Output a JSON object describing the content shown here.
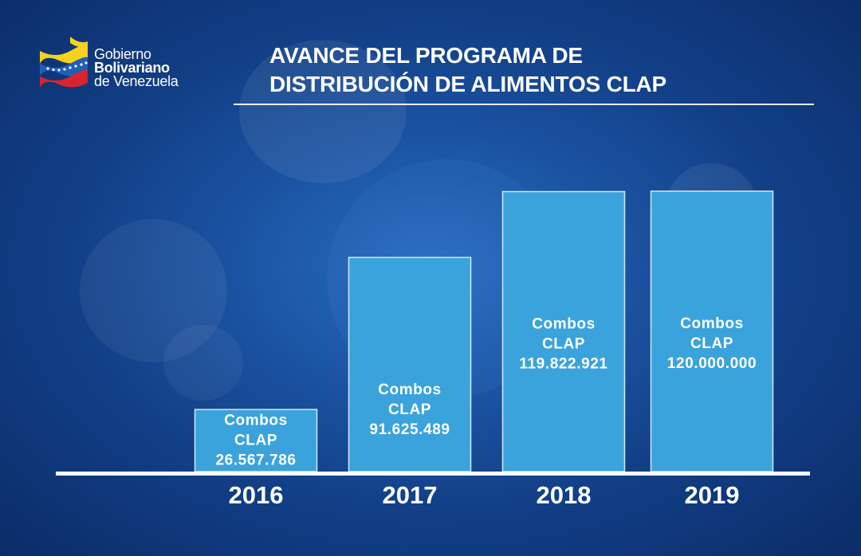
{
  "header": {
    "logo": {
      "line1": "Gobierno",
      "line2": "Bolivariano",
      "line3": "de Venezuela",
      "flag_colors": [
        "#f6d21e",
        "#1f5fb8",
        "#d9232e"
      ]
    },
    "title_line1": "AVANCE DEL PROGRAMA DE",
    "title_line2": "DISTRIBUCIÓN DE ALIMENTOS CLAP"
  },
  "chart_data": {
    "type": "bar",
    "title": "AVANCE DEL PROGRAMA DE DISTRIBUCIÓN DE ALIMENTOS CLAP",
    "categories": [
      "2016",
      "2017",
      "2018",
      "2019"
    ],
    "values": [
      26567786,
      91625489,
      119822921,
      120000000
    ],
    "value_labels": [
      "26.567.786",
      "91.625.489",
      "119.822.921",
      "120.000.000"
    ],
    "bar_label_lines": [
      "Combos",
      "CLAP"
    ],
    "xlabel": "",
    "ylabel": "",
    "grid": false,
    "legend": "none",
    "bar_color": "#3ba3dc",
    "bar_border_color": "#cfe9f8",
    "baseline_color": "#ffffff"
  }
}
